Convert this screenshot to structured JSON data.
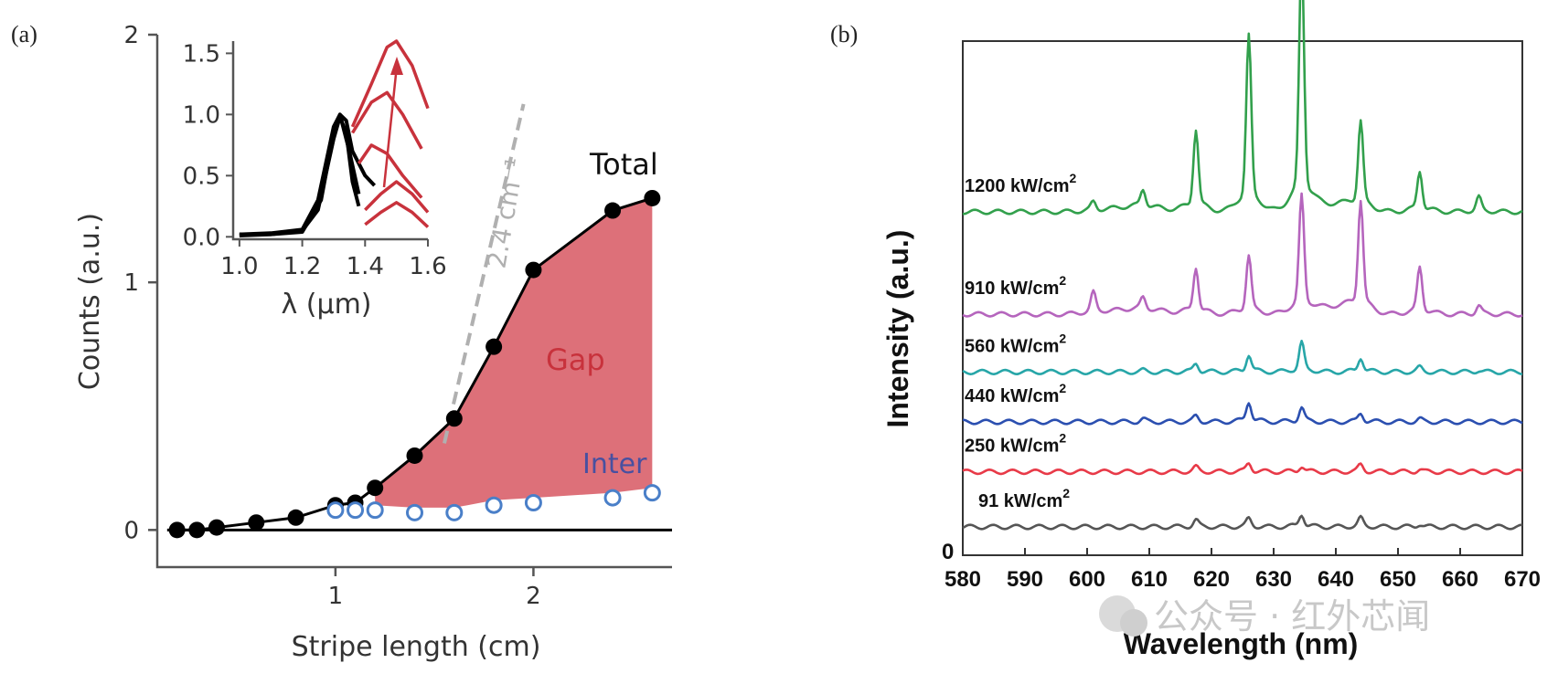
{
  "panel_a_label": "(a)",
  "panel_b_label": "(b)",
  "watermark": "公众号 · 红外芯闻",
  "colors": {
    "total": "#000000",
    "inter": "#4a7fc8",
    "gap_fill": "#d9606a",
    "gap_text": "#c8323c",
    "inter_text": "#4850a0",
    "dashed": "#b0b0b0",
    "inset_red": "#c8323c"
  },
  "chart_data": [
    {
      "id": "a_main",
      "type": "scatter",
      "xlabel": "Stripe length (cm)",
      "ylabel": "Counts (a.u.)",
      "xlim": [
        0.1,
        2.7
      ],
      "ylim": [
        -0.15,
        2.0
      ],
      "xticks": [
        1,
        2
      ],
      "yticks": [
        0,
        1,
        2
      ],
      "series": [
        {
          "name": "Total",
          "x": [
            0.2,
            0.3,
            0.4,
            0.6,
            0.8,
            1.0,
            1.1,
            1.2,
            1.4,
            1.6,
            1.8,
            2.0,
            2.4,
            2.6
          ],
          "y": [
            0.0,
            0.0,
            0.01,
            0.03,
            0.05,
            0.1,
            0.11,
            0.17,
            0.3,
            0.45,
            0.74,
            1.05,
            1.29,
            1.34
          ]
        },
        {
          "name": "Inter",
          "x": [
            1.0,
            1.1,
            1.2,
            1.4,
            1.6,
            1.8,
            2.0,
            2.4,
            2.6
          ],
          "y": [
            0.08,
            0.08,
            0.08,
            0.07,
            0.07,
            0.1,
            0.11,
            0.13,
            0.15
          ]
        }
      ],
      "annotations": {
        "total": "Total",
        "gap": "Gap",
        "inter": "Inter",
        "slope": "2.4 cm⁻¹"
      }
    },
    {
      "id": "a_inset",
      "type": "line",
      "xlabel": "λ (μm)",
      "xlim": [
        0.98,
        1.6
      ],
      "ylim": [
        -0.02,
        1.6
      ],
      "xticks": [
        "1.0",
        "1.2",
        "1.4",
        "1.6"
      ],
      "yticks": [
        "0.0",
        "0.5",
        "1.0",
        "1.5"
      ],
      "series": [
        {
          "name": "black-1",
          "x": [
            1.0,
            1.1,
            1.2,
            1.25,
            1.3,
            1.32,
            1.34,
            1.36,
            1.4,
            1.43
          ],
          "y": [
            0.02,
            0.03,
            0.06,
            0.3,
            0.9,
            1.0,
            0.95,
            0.7,
            0.5,
            0.42
          ]
        },
        {
          "name": "black-2",
          "x": [
            1.0,
            1.1,
            1.2,
            1.25,
            1.3,
            1.32,
            1.34,
            1.36,
            1.38
          ],
          "y": [
            0.02,
            0.02,
            0.05,
            0.22,
            0.8,
            0.98,
            0.85,
            0.45,
            0.25
          ]
        },
        {
          "name": "black-3",
          "x": [
            1.0,
            1.1,
            1.2,
            1.26,
            1.3,
            1.32,
            1.35,
            1.38
          ],
          "y": [
            0.01,
            0.02,
            0.04,
            0.3,
            0.85,
            1.0,
            0.7,
            0.35
          ]
        },
        {
          "name": "red-1",
          "x": [
            1.4,
            1.45,
            1.5,
            1.55,
            1.6
          ],
          "y": [
            0.1,
            0.2,
            0.28,
            0.2,
            0.08
          ]
        },
        {
          "name": "red-2",
          "x": [
            1.4,
            1.45,
            1.5,
            1.55,
            1.6
          ],
          "y": [
            0.22,
            0.35,
            0.45,
            0.35,
            0.2
          ]
        },
        {
          "name": "red-3",
          "x": [
            1.38,
            1.42,
            1.47,
            1.52,
            1.58
          ],
          "y": [
            0.6,
            0.75,
            0.68,
            0.5,
            0.32
          ]
        },
        {
          "name": "red-4",
          "x": [
            1.36,
            1.42,
            1.47,
            1.52,
            1.58
          ],
          "y": [
            0.85,
            1.1,
            1.18,
            1.0,
            0.72
          ]
        },
        {
          "name": "red-5",
          "x": [
            1.36,
            1.42,
            1.47,
            1.5,
            1.55,
            1.6
          ],
          "y": [
            0.9,
            1.25,
            1.55,
            1.6,
            1.4,
            1.05
          ]
        }
      ]
    },
    {
      "id": "b_spectra",
      "type": "line",
      "xlabel": "Wavelength (nm)",
      "ylabel": "Intensity (a.u.)",
      "xlim": [
        580,
        670
      ],
      "xticks": [
        580,
        590,
        600,
        610,
        620,
        630,
        640,
        650,
        660,
        670
      ],
      "ytick_label": "0",
      "peaks_nm": [
        601,
        609,
        617.5,
        626,
        634.5,
        644,
        653.5,
        663
      ],
      "series": [
        {
          "name": "91 kW/cm",
          "sup": "2",
          "color": "#555555",
          "offset": 0.0,
          "amplitudes": [
            0,
            0,
            0.012,
            0.014,
            0.022,
            0.015,
            0.005,
            0
          ]
        },
        {
          "name": "250 kW/cm",
          "sup": "2",
          "color": "#e83a48",
          "offset": 0.105,
          "amplitudes": [
            0,
            0,
            0.008,
            0.015,
            0.01,
            0.012,
            0.004,
            0
          ]
        },
        {
          "name": "440 kW/cm",
          "sup": "2",
          "color": "#2b4fb0",
          "offset": 0.2,
          "amplitudes": [
            0,
            0.005,
            0.01,
            0.035,
            0.025,
            0.015,
            0.005,
            0
          ]
        },
        {
          "name": "560 kW/cm",
          "sup": "2",
          "color": "#27a6a8",
          "offset": 0.295,
          "amplitudes": [
            0,
            0.003,
            0.015,
            0.03,
            0.05,
            0.025,
            0.008,
            0.003
          ]
        },
        {
          "name": "910 kW/cm",
          "sup": "2",
          "color": "#b565bd",
          "offset": 0.405,
          "amplitudes": [
            0.035,
            0.02,
            0.08,
            0.1,
            0.2,
            0.19,
            0.08,
            0.015
          ]
        },
        {
          "name": "1200 kW/cm",
          "sup": "2",
          "color": "#32a04c",
          "offset": 0.6,
          "amplitudes": [
            0.015,
            0.03,
            0.14,
            0.3,
            0.43,
            0.15,
            0.07,
            0.025
          ]
        }
      ]
    }
  ]
}
